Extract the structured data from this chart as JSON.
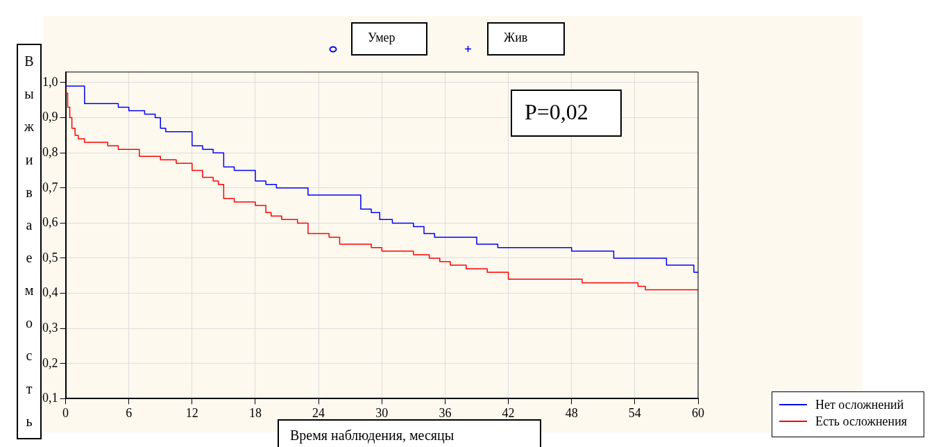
{
  "chart_data": {
    "type": "step",
    "xlabel": "Время наблюдения, месяцы",
    "ylabel": "Выживаемость",
    "xlim": [
      0,
      60
    ],
    "xticks": [
      0,
      6,
      12,
      18,
      24,
      30,
      36,
      42,
      48,
      54,
      60
    ],
    "ylim": [
      0.1,
      1.03
    ],
    "yticks": [
      {
        "value": 0.1,
        "label": "0,1"
      },
      {
        "value": 0.2,
        "label": "0,2"
      },
      {
        "value": 0.3,
        "label": "0,3"
      },
      {
        "value": 0.4,
        "label": "0,4"
      },
      {
        "value": 0.5,
        "label": "0,5"
      },
      {
        "value": 0.6,
        "label": "0,6"
      },
      {
        "value": 0.7,
        "label": "0,7"
      },
      {
        "value": 0.8,
        "label": "0,8"
      },
      {
        "value": 0.9,
        "label": "0,9"
      },
      {
        "value": 1.0,
        "label": "1,0"
      }
    ],
    "grid": true,
    "legend": "bottom right",
    "line_style": "solid",
    "marker": "none",
    "annotations": [
      "P=0,02",
      "Умер",
      "Жив"
    ],
    "series": [
      {
        "name": "Нет осложнений",
        "color": "#0000ff",
        "x": [
          0,
          1.8,
          5,
          6,
          7.5,
          8.5,
          9,
          9.5,
          12,
          13,
          14,
          15,
          16,
          18,
          19,
          20,
          23,
          28,
          29,
          29.8,
          31,
          33,
          34,
          35,
          39,
          41,
          48,
          52,
          57,
          59.6,
          60
        ],
        "values": [
          1.0,
          0.99,
          0.94,
          0.93,
          0.92,
          0.91,
          0.9,
          0.87,
          0.86,
          0.82,
          0.81,
          0.8,
          0.76,
          0.75,
          0.72,
          0.71,
          0.7,
          0.68,
          0.64,
          0.63,
          0.61,
          0.6,
          0.59,
          0.57,
          0.56,
          0.54,
          0.53,
          0.52,
          0.5,
          0.48,
          0.46
        ]
      },
      {
        "name": "Есть осложнения",
        "color": "#ff0000",
        "x": [
          0,
          0.2,
          0.4,
          0.6,
          0.9,
          1.2,
          1.8,
          4,
          5,
          7,
          9,
          10.5,
          12,
          13,
          14,
          14.5,
          15,
          16,
          18,
          19,
          19.5,
          20.5,
          22,
          23,
          25,
          26,
          29,
          30,
          33,
          34.5,
          35.5,
          36.5,
          38,
          40,
          42,
          49,
          54.3,
          55,
          56.1,
          60
        ],
        "values": [
          1.0,
          0.97,
          0.93,
          0.9,
          0.87,
          0.85,
          0.84,
          0.83,
          0.82,
          0.81,
          0.79,
          0.78,
          0.77,
          0.75,
          0.73,
          0.72,
          0.71,
          0.67,
          0.66,
          0.65,
          0.63,
          0.62,
          0.61,
          0.6,
          0.57,
          0.56,
          0.54,
          0.53,
          0.52,
          0.51,
          0.5,
          0.49,
          0.48,
          0.47,
          0.46,
          0.44,
          0.43,
          0.42,
          0.41,
          0.41
        ]
      }
    ]
  }
}
